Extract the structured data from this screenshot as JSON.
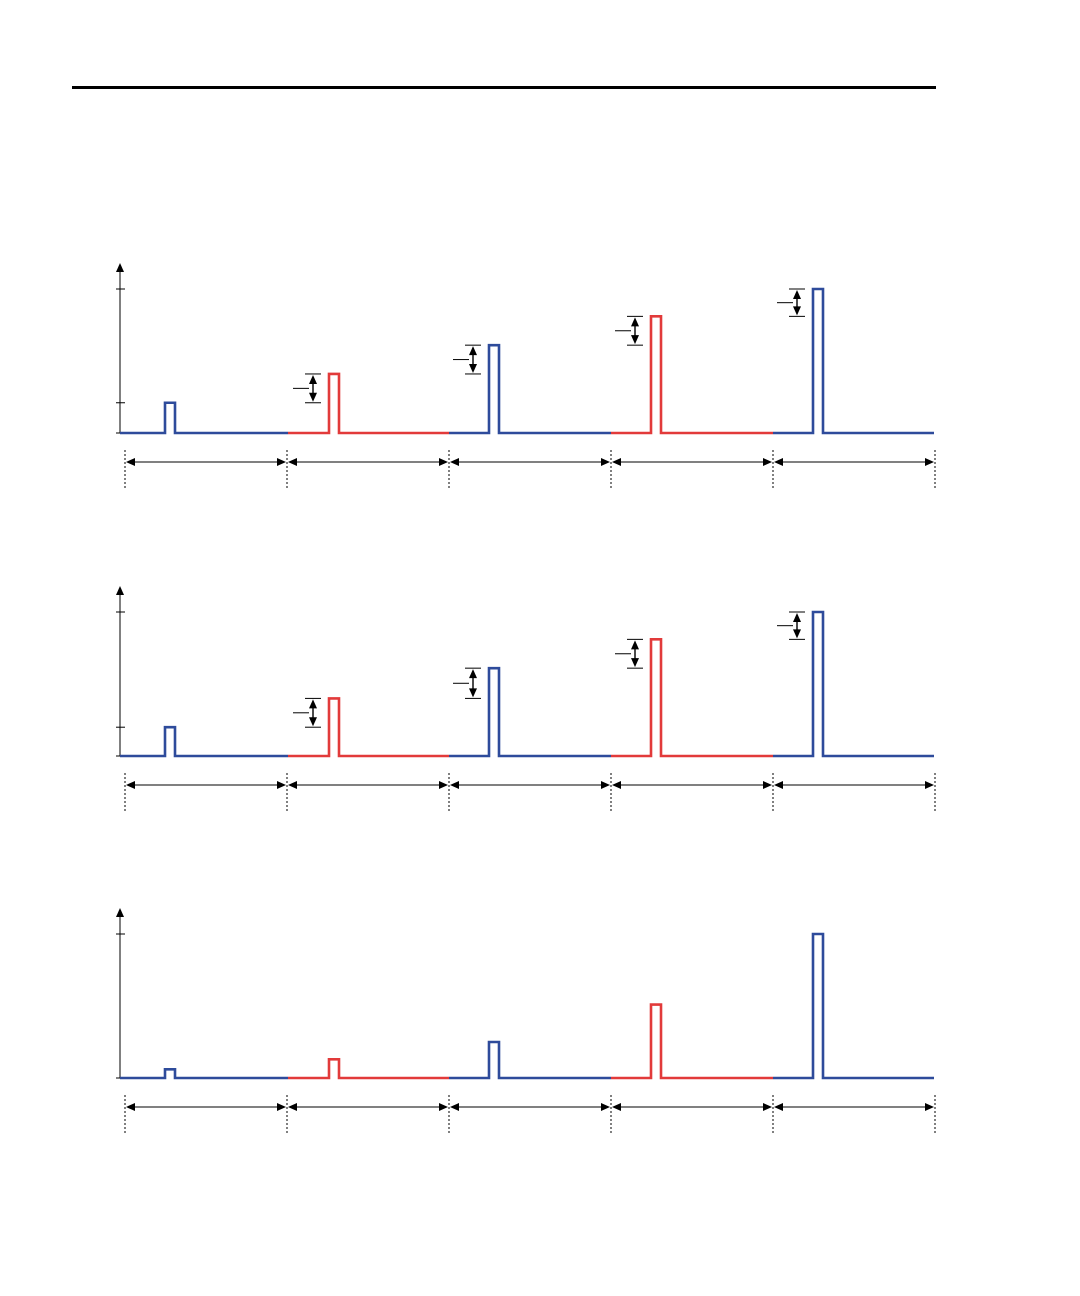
{
  "colors": {
    "blue": "#2e4b9b",
    "red": "#e23a3a",
    "axis": "#000000",
    "rule": "#000000"
  },
  "icons": {
    "arrow": "arrowhead",
    "dimension": "double-arrow-dimension",
    "divider": "dotted-divider"
  },
  "panels": [
    {
      "name": "panel-1",
      "segments": [
        {
          "color": "blue",
          "pulse_level": 0.21,
          "step_marker": false
        },
        {
          "color": "red",
          "pulse_level": 0.41,
          "step_marker": true
        },
        {
          "color": "blue",
          "pulse_level": 0.61,
          "step_marker": true
        },
        {
          "color": "red",
          "pulse_level": 0.81,
          "step_marker": true
        },
        {
          "color": "blue",
          "pulse_level": 1.0,
          "step_marker": true
        }
      ],
      "y_ticks": [
        0.21,
        1.0
      ]
    },
    {
      "name": "panel-2",
      "segments": [
        {
          "color": "blue",
          "pulse_level": 0.2,
          "step_marker": false
        },
        {
          "color": "red",
          "pulse_level": 0.4,
          "step_marker": true
        },
        {
          "color": "blue",
          "pulse_level": 0.61,
          "step_marker": true
        },
        {
          "color": "red",
          "pulse_level": 0.81,
          "step_marker": true
        },
        {
          "color": "blue",
          "pulse_level": 1.0,
          "step_marker": true
        }
      ],
      "y_ticks": [
        0.2,
        1.0
      ]
    },
    {
      "name": "panel-3",
      "segments": [
        {
          "color": "blue",
          "pulse_level": 0.06,
          "step_marker": false
        },
        {
          "color": "red",
          "pulse_level": 0.13,
          "step_marker": false
        },
        {
          "color": "blue",
          "pulse_level": 0.25,
          "step_marker": false
        },
        {
          "color": "red",
          "pulse_level": 0.51,
          "step_marker": false
        },
        {
          "color": "blue",
          "pulse_level": 1.0,
          "step_marker": false
        }
      ],
      "y_ticks": [
        1.0
      ]
    }
  ]
}
